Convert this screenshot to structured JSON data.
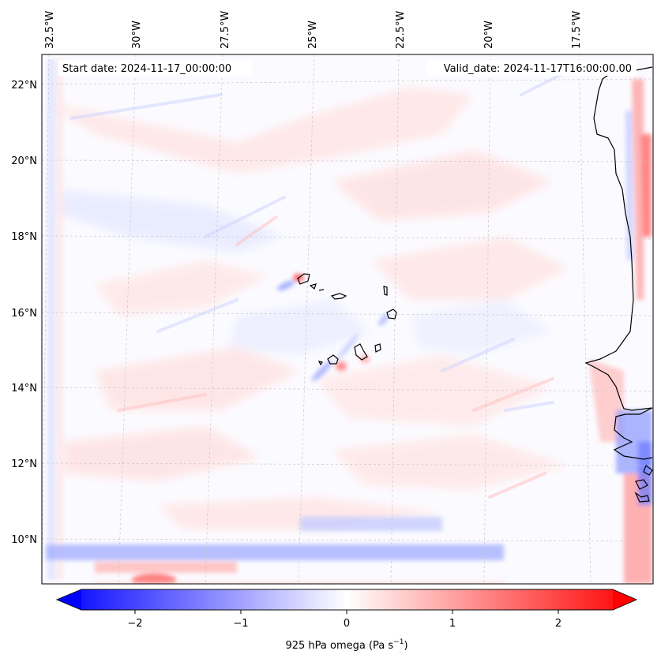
{
  "map": {
    "start_date": "Start date: 2024-11-17_00:00:00",
    "valid_date": "Valid_date: 2024-11-17T16:00:00.00",
    "lon_labels": [
      "32.5°W",
      "30°W",
      "27.5°W",
      "25°W",
      "22.5°W",
      "20°W",
      "17.5°W"
    ],
    "lat_labels": [
      "22°N",
      "20°N",
      "18°N",
      "16°N",
      "14°N",
      "12°N",
      "10°N"
    ],
    "colorbar": {
      "label": "925 hPa omega (Pa s",
      "label_sup": "−1",
      "label_close": ")",
      "ticks": [
        "−2",
        "−1",
        "0",
        "1",
        "2"
      ],
      "tick_values": [
        -2,
        -1,
        0,
        1,
        2
      ],
      "range": [
        -2.5,
        2.5
      ],
      "colormap": "bwr",
      "colors": {
        "low": "#0000ff",
        "mid": "#ffffff",
        "high": "#ff0000"
      }
    },
    "colors": {
      "coastline": "#000000",
      "gridline": "#c8c8c8",
      "frame": "#000000"
    }
  }
}
